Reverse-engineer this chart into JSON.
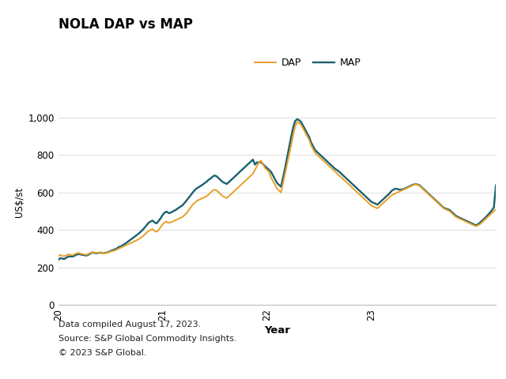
{
  "title": "NOLA DAP vs MAP",
  "ylabel": "US$/st",
  "xlabel": "Year",
  "ylim": [
    0,
    1100
  ],
  "yticks": [
    0,
    200,
    400,
    600,
    800,
    1000
  ],
  "ytick_labels": [
    "0",
    "200",
    "400",
    "600",
    "800",
    "1,000"
  ],
  "dap_color": "#E8A028",
  "map_color": "#1A6070",
  "footer_lines": [
    "Data compiled August 17, 2023.",
    "Source: S&P Global Commodity Insights.",
    "© 2023 S&P Global."
  ],
  "x_tick_positions": [
    0,
    52,
    104,
    156
  ],
  "x_tick_labels": [
    "20",
    "21",
    "22",
    "23"
  ],
  "dap": [
    260,
    268,
    262,
    260,
    265,
    270,
    268,
    265,
    270,
    275,
    278,
    275,
    272,
    270,
    268,
    272,
    278,
    282,
    280,
    278,
    280,
    280,
    275,
    275,
    278,
    280,
    285,
    288,
    290,
    295,
    300,
    305,
    310,
    315,
    320,
    325,
    330,
    335,
    340,
    345,
    350,
    358,
    365,
    375,
    385,
    395,
    400,
    405,
    395,
    390,
    400,
    415,
    430,
    440,
    445,
    438,
    440,
    445,
    450,
    455,
    460,
    465,
    470,
    480,
    490,
    505,
    520,
    535,
    545,
    555,
    560,
    565,
    570,
    575,
    580,
    590,
    600,
    610,
    615,
    610,
    600,
    590,
    580,
    575,
    570,
    580,
    590,
    600,
    610,
    620,
    630,
    640,
    650,
    660,
    670,
    680,
    690,
    700,
    720,
    740,
    760,
    770,
    750,
    730,
    720,
    710,
    680,
    660,
    640,
    620,
    610,
    600,
    650,
    700,
    750,
    800,
    850,
    900,
    950,
    975,
    970,
    960,
    940,
    920,
    900,
    880,
    850,
    830,
    810,
    800,
    790,
    780,
    770,
    760,
    750,
    740,
    730,
    720,
    710,
    700,
    690,
    680,
    670,
    660,
    650,
    640,
    630,
    620,
    610,
    600,
    590,
    580,
    570,
    560,
    550,
    540,
    530,
    525,
    520,
    515,
    525,
    535,
    545,
    555,
    565,
    575,
    585,
    590,
    595,
    600,
    605,
    610,
    615,
    620,
    625,
    630,
    635,
    640,
    645,
    640,
    635,
    625,
    615,
    605,
    595,
    585,
    575,
    565,
    555,
    545,
    535,
    525,
    515,
    510,
    505,
    500,
    490,
    480,
    470,
    465,
    460,
    455,
    450,
    445,
    440,
    435,
    430,
    425,
    420,
    425,
    430,
    440,
    450,
    460,
    470,
    480,
    490,
    500,
    510
  ],
  "map": [
    240,
    250,
    248,
    245,
    252,
    258,
    260,
    258,
    262,
    268,
    272,
    270,
    268,
    266,
    264,
    268,
    275,
    280,
    278,
    276,
    278,
    280,
    276,
    276,
    280,
    282,
    288,
    292,
    296,
    300,
    308,
    312,
    318,
    325,
    332,
    340,
    348,
    356,
    364,
    372,
    380,
    390,
    400,
    412,
    425,
    438,
    445,
    450,
    440,
    435,
    448,
    462,
    480,
    492,
    498,
    490,
    492,
    498,
    504,
    510,
    518,
    525,
    532,
    545,
    558,
    572,
    585,
    600,
    612,
    622,
    628,
    635,
    642,
    650,
    658,
    668,
    675,
    685,
    690,
    685,
    675,
    665,
    655,
    650,
    645,
    655,
    665,
    675,
    685,
    695,
    705,
    715,
    725,
    735,
    745,
    755,
    765,
    775,
    748,
    760,
    760,
    762,
    750,
    740,
    730,
    720,
    710,
    690,
    670,
    650,
    640,
    630,
    680,
    730,
    785,
    840,
    895,
    945,
    980,
    990,
    985,
    975,
    955,
    935,
    915,
    895,
    865,
    845,
    825,
    815,
    805,
    795,
    785,
    775,
    765,
    755,
    745,
    735,
    725,
    718,
    710,
    700,
    690,
    680,
    670,
    660,
    650,
    640,
    630,
    620,
    610,
    600,
    590,
    580,
    570,
    560,
    550,
    545,
    540,
    535,
    545,
    555,
    565,
    575,
    585,
    595,
    608,
    615,
    620,
    618,
    615,
    615,
    618,
    622,
    628,
    632,
    638,
    642,
    645,
    642,
    638,
    628,
    618,
    608,
    598,
    588,
    578,
    568,
    558,
    548,
    538,
    528,
    518,
    514,
    510,
    506,
    496,
    486,
    476,
    470,
    465,
    460,
    455,
    450,
    445,
    440,
    435,
    430,
    425,
    430,
    438,
    448,
    458,
    468,
    480,
    492,
    505,
    520,
    638
  ]
}
